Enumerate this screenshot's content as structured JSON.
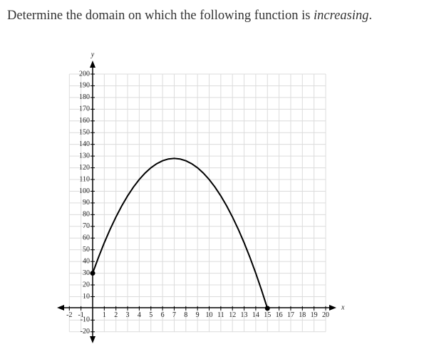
{
  "question": {
    "text": "Determine the domain on which the following function is ",
    "emphasis": "increasing",
    "end": "."
  },
  "chart_data": {
    "type": "line",
    "x_label": "x",
    "y_label": "y",
    "x": [
      0,
      0.5,
      1,
      1.5,
      2,
      2.5,
      3,
      3.5,
      4,
      4.5,
      5,
      5.5,
      6,
      6.5,
      7,
      7.5,
      8,
      8.5,
      9,
      9.5,
      10,
      10.5,
      11,
      11.5,
      12,
      12.5,
      13,
      13.5,
      14,
      14.5,
      15
    ],
    "series": [
      {
        "color": "#000000",
        "values": [
          30,
          43.5,
          56,
          67.5,
          78,
          87.5,
          96,
          103.5,
          110,
          115.5,
          120,
          123.5,
          126,
          127.5,
          128,
          127.5,
          126,
          123.5,
          120,
          115.5,
          110,
          103.5,
          96,
          87.5,
          78,
          67.5,
          56,
          43.5,
          30,
          15.5,
          0
        ]
      }
    ],
    "end_markers": true,
    "xlim": [
      -2,
      20
    ],
    "ylim": [
      -20,
      200
    ],
    "xticks": [
      -2,
      -1,
      1,
      2,
      3,
      4,
      5,
      6,
      7,
      8,
      9,
      10,
      11,
      12,
      13,
      14,
      15,
      16,
      17,
      18,
      19,
      20
    ],
    "yticks": [
      -20,
      -10,
      10,
      20,
      30,
      40,
      50,
      60,
      70,
      80,
      90,
      100,
      110,
      120,
      130,
      140,
      150,
      160,
      170,
      180,
      190,
      200
    ],
    "grid": true
  }
}
